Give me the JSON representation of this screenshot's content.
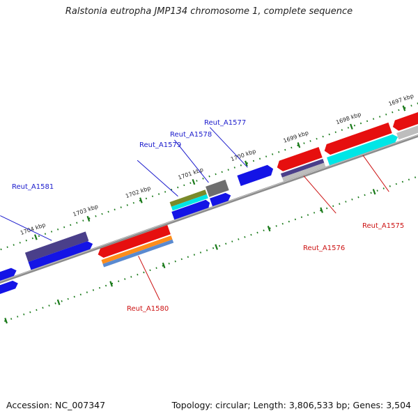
{
  "title": "Ralstonia eutropha JMP134 chromosome 1, complete sequence",
  "footer": {
    "accession": "Accession: NC_007347",
    "summary": "Topology: circular; Length: 3,806,533 bp; Genes: 3,504"
  },
  "ticks": [
    "1697 kbp",
    "1698 kbp",
    "1699 kbp",
    "1700 kbp",
    "1701 kbp",
    "1702 kbp",
    "1703 kbp",
    "1704 kbp"
  ],
  "labels": {
    "forward": [
      "Reut_A1581",
      "Reut_A1579",
      "Reut_A1578",
      "Reut_A1577"
    ],
    "reverse": [
      "Reut_A1580",
      "Reut_A1576",
      "Reut_A1575"
    ]
  },
  "colors": {
    "backbone": "#8c8c8c",
    "tick": "#1a7a1a",
    "label_forward": "#1a1acc",
    "label_reverse": "#cc1111",
    "gene_blue": "#1414e6",
    "gene_navy": "#4a3f8a",
    "gene_red": "#e60f0f",
    "gene_gray": "#6e6e6e",
    "gene_light_gray": "#bdbdbd",
    "gene_cyan": "#00e6e6",
    "gene_olive": "#7a8a2a",
    "gene_orange": "#ff8c1a",
    "gene_steel": "#5a8ad0"
  }
}
